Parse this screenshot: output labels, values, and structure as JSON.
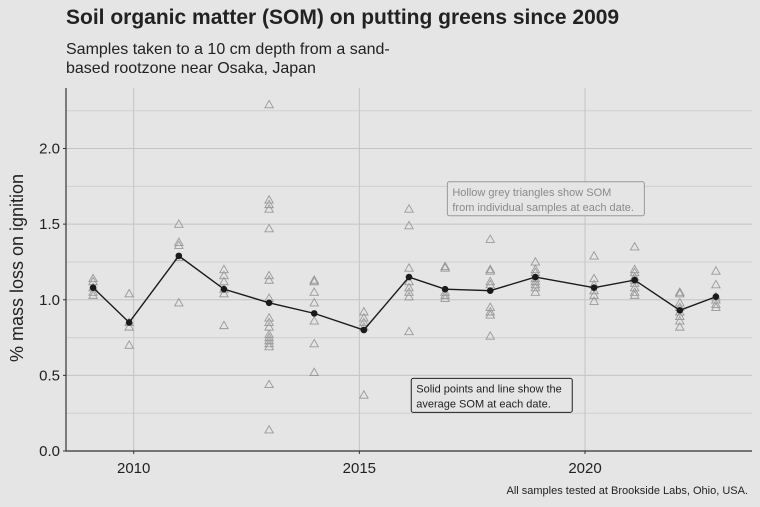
{
  "chart_data": {
    "type": "scatter",
    "title": "Soil organic matter (SOM) on putting greens since 2009",
    "subtitle": "Samples taken to a 10 cm depth from a sand-based rootzone near Osaka, Japan",
    "xlabel": "",
    "ylabel": "% mass loss on ignition",
    "caption": "All samples tested at Brookside Labs, Ohio, USA.",
    "xlim": [
      2008.5,
      2023.7
    ],
    "ylim": [
      0,
      2.4
    ],
    "x_ticks": [
      2010,
      2015,
      2020
    ],
    "x_tick_labels": [
      "2010",
      "2015",
      "2020"
    ],
    "y_ticks": [
      0,
      0.5,
      1.0,
      1.5,
      2.0
    ],
    "y_tick_labels": [
      "0.0",
      "0.5",
      "1.0",
      "1.5",
      "2.0"
    ],
    "grid": true,
    "annotations": [
      {
        "text_lines": [
          "Hollow grey triangles show SOM",
          "from individual samples at each date."
        ],
        "style": "grey",
        "x": 2016.95,
        "y": 1.78
      },
      {
        "text_lines": [
          "Solid points and line show the",
          "average SOM at each date."
        ],
        "style": "dark",
        "x": 2016.15,
        "y": 0.48
      }
    ],
    "series": [
      {
        "name": "individual samples",
        "marker": "hollow-triangle",
        "color": "#999999",
        "points": [
          [
            2009.1,
            1.14
          ],
          [
            2009.1,
            1.12
          ],
          [
            2009.1,
            1.08
          ],
          [
            2009.1,
            1.05
          ],
          [
            2009.1,
            1.03
          ],
          [
            2009.9,
            1.04
          ],
          [
            2009.9,
            0.85
          ],
          [
            2009.9,
            0.82
          ],
          [
            2009.9,
            0.7
          ],
          [
            2011.0,
            1.5
          ],
          [
            2011.0,
            1.38
          ],
          [
            2011.0,
            1.36
          ],
          [
            2011.0,
            1.28
          ],
          [
            2011.0,
            0.98
          ],
          [
            2012.0,
            1.2
          ],
          [
            2012.0,
            1.16
          ],
          [
            2012.0,
            1.12
          ],
          [
            2012.0,
            1.07
          ],
          [
            2012.0,
            1.04
          ],
          [
            2012.0,
            0.83
          ],
          [
            2013.0,
            2.29
          ],
          [
            2013.0,
            1.66
          ],
          [
            2013.0,
            1.63
          ],
          [
            2013.0,
            1.6
          ],
          [
            2013.0,
            1.47
          ],
          [
            2013.0,
            1.16
          ],
          [
            2013.0,
            1.13
          ],
          [
            2013.0,
            1.01
          ],
          [
            2013.0,
            0.88
          ],
          [
            2013.0,
            0.85
          ],
          [
            2013.0,
            0.82
          ],
          [
            2013.0,
            0.77
          ],
          [
            2013.0,
            0.75
          ],
          [
            2013.0,
            0.73
          ],
          [
            2013.0,
            0.71
          ],
          [
            2013.0,
            0.69
          ],
          [
            2013.0,
            0.44
          ],
          [
            2013.0,
            0.14
          ],
          [
            2014.0,
            1.13
          ],
          [
            2014.0,
            1.12
          ],
          [
            2014.0,
            1.05
          ],
          [
            2014.0,
            0.98
          ],
          [
            2014.0,
            0.86
          ],
          [
            2014.0,
            0.71
          ],
          [
            2014.0,
            0.52
          ],
          [
            2015.1,
            0.92
          ],
          [
            2015.1,
            0.88
          ],
          [
            2015.1,
            0.85
          ],
          [
            2015.1,
            0.82
          ],
          [
            2015.1,
            0.37
          ],
          [
            2016.1,
            1.6
          ],
          [
            2016.1,
            1.49
          ],
          [
            2016.1,
            1.21
          ],
          [
            2016.1,
            1.12
          ],
          [
            2016.1,
            1.08
          ],
          [
            2016.1,
            1.05
          ],
          [
            2016.1,
            1.02
          ],
          [
            2016.1,
            0.79
          ],
          [
            2016.9,
            1.22
          ],
          [
            2016.9,
            1.21
          ],
          [
            2016.9,
            1.05
          ],
          [
            2016.9,
            1.03
          ],
          [
            2016.9,
            1.01
          ],
          [
            2017.9,
            1.4
          ],
          [
            2017.9,
            1.2
          ],
          [
            2017.9,
            1.19
          ],
          [
            2017.9,
            1.12
          ],
          [
            2017.9,
            1.1
          ],
          [
            2017.9,
            0.95
          ],
          [
            2017.9,
            0.92
          ],
          [
            2017.9,
            0.9
          ],
          [
            2017.9,
            0.76
          ],
          [
            2018.9,
            1.25
          ],
          [
            2018.9,
            1.2
          ],
          [
            2018.9,
            1.18
          ],
          [
            2018.9,
            1.14
          ],
          [
            2018.9,
            1.12
          ],
          [
            2018.9,
            1.1
          ],
          [
            2018.9,
            1.08
          ],
          [
            2018.9,
            1.05
          ],
          [
            2020.2,
            1.29
          ],
          [
            2020.2,
            1.14
          ],
          [
            2020.2,
            1.1
          ],
          [
            2020.2,
            1.06
          ],
          [
            2020.2,
            1.03
          ],
          [
            2020.2,
            0.99
          ],
          [
            2021.1,
            1.35
          ],
          [
            2021.1,
            1.2
          ],
          [
            2021.1,
            1.18
          ],
          [
            2021.1,
            1.15
          ],
          [
            2021.1,
            1.13
          ],
          [
            2021.1,
            1.11
          ],
          [
            2021.1,
            1.08
          ],
          [
            2021.1,
            1.05
          ],
          [
            2021.1,
            1.03
          ],
          [
            2022.1,
            1.05
          ],
          [
            2022.1,
            1.04
          ],
          [
            2022.1,
            0.98
          ],
          [
            2022.1,
            0.95
          ],
          [
            2022.1,
            0.92
          ],
          [
            2022.1,
            0.89
          ],
          [
            2022.1,
            0.86
          ],
          [
            2022.1,
            0.82
          ],
          [
            2022.9,
            1.19
          ],
          [
            2022.9,
            1.1
          ],
          [
            2022.9,
            1.02
          ],
          [
            2022.9,
            1.0
          ],
          [
            2022.9,
            0.97
          ],
          [
            2022.9,
            0.95
          ]
        ]
      },
      {
        "name": "average",
        "marker": "filled-circle-line",
        "color": "#1a1a1a",
        "x": [
          2009.1,
          2009.9,
          2011.0,
          2012.0,
          2013.0,
          2014.0,
          2015.1,
          2016.1,
          2016.9,
          2017.9,
          2018.9,
          2020.2,
          2021.1,
          2022.1,
          2022.9
        ],
        "y": [
          1.08,
          0.85,
          1.29,
          1.07,
          0.98,
          0.91,
          0.8,
          1.15,
          1.07,
          1.06,
          1.15,
          1.08,
          1.13,
          0.93,
          1.02
        ]
      }
    ]
  }
}
